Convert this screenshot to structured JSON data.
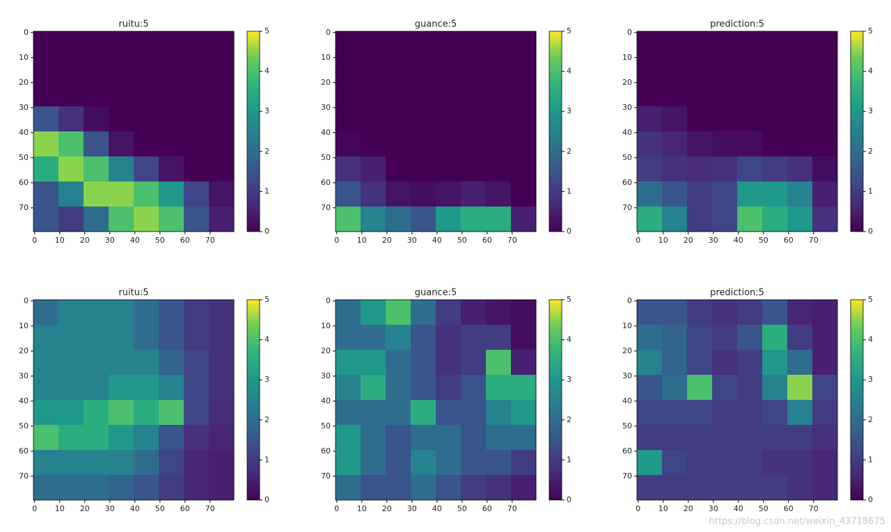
{
  "chart_data": [
    {
      "type": "heatmap",
      "title": "ruitu:5",
      "colormap": "viridis",
      "xlim": [
        -0.5,
        79.5
      ],
      "ylim": [
        79.5,
        -0.5
      ],
      "xticks": [
        0,
        10,
        20,
        30,
        40,
        50,
        60,
        70
      ],
      "yticks": [
        0,
        10,
        20,
        30,
        40,
        50,
        60,
        70
      ],
      "clim": [
        0,
        5
      ],
      "cticks": [
        0,
        1,
        2,
        3,
        4,
        5
      ],
      "values": [
        [
          0,
          0,
          0,
          0,
          0,
          0,
          0,
          0
        ],
        [
          0,
          0,
          0,
          0,
          0,
          0,
          0,
          0
        ],
        [
          0,
          0,
          0,
          0,
          0,
          0,
          0,
          0
        ],
        [
          1.5,
          0.8,
          0.2,
          0,
          0,
          0,
          0,
          0
        ],
        [
          4.5,
          4,
          1.5,
          0.3,
          0,
          0,
          0,
          0
        ],
        [
          3.5,
          4.5,
          4,
          2.5,
          1.2,
          0.3,
          0,
          0
        ],
        [
          1.5,
          2.5,
          4.5,
          4.5,
          4,
          3,
          1.2,
          0.3
        ],
        [
          1.5,
          1,
          2,
          4,
          4.5,
          4,
          1.5,
          0.5
        ]
      ]
    },
    {
      "type": "heatmap",
      "title": "guance:5",
      "colormap": "viridis",
      "xlim": [
        -0.5,
        79.5
      ],
      "ylim": [
        79.5,
        -0.5
      ],
      "xticks": [
        0,
        10,
        20,
        30,
        40,
        50,
        60,
        70
      ],
      "yticks": [
        0,
        10,
        20,
        30,
        40,
        50,
        60,
        70
      ],
      "clim": [
        0,
        5
      ],
      "cticks": [
        0,
        1,
        2,
        3,
        4,
        5
      ],
      "values": [
        [
          0,
          0,
          0,
          0,
          0,
          0,
          0,
          0
        ],
        [
          0,
          0,
          0,
          0,
          0,
          0,
          0,
          0
        ],
        [
          0,
          0,
          0,
          0,
          0,
          0,
          0,
          0
        ],
        [
          0,
          0,
          0,
          0,
          0,
          0,
          0,
          0
        ],
        [
          0.1,
          0,
          0,
          0,
          0,
          0,
          0,
          0
        ],
        [
          0.8,
          0.5,
          0,
          0,
          0,
          0,
          0,
          0
        ],
        [
          1.5,
          0.8,
          0.3,
          0.2,
          0.3,
          0.5,
          0.3,
          0
        ],
        [
          4,
          2.5,
          2,
          1.5,
          3,
          3.5,
          3.5,
          0.5
        ]
      ]
    },
    {
      "type": "heatmap",
      "title": "prediction:5",
      "colormap": "viridis",
      "xlim": [
        -0.5,
        79.5
      ],
      "ylim": [
        79.5,
        -0.5
      ],
      "xticks": [
        0,
        10,
        20,
        30,
        40,
        50,
        60,
        70
      ],
      "yticks": [
        0,
        10,
        20,
        30,
        40,
        50,
        60,
        70
      ],
      "clim": [
        0,
        5
      ],
      "cticks": [
        0,
        1,
        2,
        3,
        4,
        5
      ],
      "values": [
        [
          0,
          0,
          0,
          0,
          0,
          0,
          0,
          0
        ],
        [
          0,
          0,
          0,
          0,
          0,
          0,
          0,
          0
        ],
        [
          0,
          0,
          0,
          0,
          0,
          0,
          0,
          0
        ],
        [
          0.5,
          0.3,
          0,
          0,
          0,
          0,
          0,
          0
        ],
        [
          0.8,
          0.6,
          0.3,
          0.2,
          0.2,
          0,
          0,
          0
        ],
        [
          1,
          0.8,
          0.7,
          0.8,
          1.2,
          1,
          0.8,
          0.2
        ],
        [
          2,
          1.5,
          1,
          1.2,
          3,
          3,
          2.5,
          0.5
        ],
        [
          3.5,
          2.5,
          1,
          1.2,
          4,
          3.5,
          3,
          0.8
        ]
      ]
    },
    {
      "type": "heatmap",
      "title": "ruitu:5",
      "colormap": "viridis",
      "xlim": [
        -0.5,
        79.5
      ],
      "ylim": [
        79.5,
        -0.5
      ],
      "xticks": [
        0,
        10,
        20,
        30,
        40,
        50,
        60,
        70
      ],
      "yticks": [
        0,
        10,
        20,
        30,
        40,
        50,
        60,
        70
      ],
      "clim": [
        0,
        5
      ],
      "cticks": [
        0,
        1,
        2,
        3,
        4,
        5
      ],
      "values": [
        [
          2,
          2.5,
          2.5,
          2.5,
          2,
          1.5,
          1,
          0.8
        ],
        [
          2.5,
          2.5,
          2.5,
          2.5,
          2,
          1.5,
          1,
          0.8
        ],
        [
          2.5,
          2.5,
          2.5,
          2.5,
          2.5,
          1.8,
          1.2,
          0.8
        ],
        [
          2.5,
          2.5,
          2.5,
          3,
          3,
          2.5,
          1.2,
          0.8
        ],
        [
          3,
          3,
          3.5,
          4,
          3.5,
          4,
          1.2,
          0.7
        ],
        [
          4,
          3.5,
          3.5,
          3,
          2.5,
          1.5,
          0.8,
          0.6
        ],
        [
          2.5,
          2.5,
          2.5,
          2.5,
          2,
          1.2,
          0.6,
          0.5
        ],
        [
          2,
          2,
          2,
          1.8,
          1.5,
          1,
          0.6,
          0.5
        ]
      ]
    },
    {
      "type": "heatmap",
      "title": "guance:5",
      "colormap": "viridis",
      "xlim": [
        -0.5,
        79.5
      ],
      "ylim": [
        79.5,
        -0.5
      ],
      "xticks": [
        0,
        10,
        20,
        30,
        40,
        50,
        60,
        70
      ],
      "yticks": [
        0,
        10,
        20,
        30,
        40,
        50,
        60,
        70
      ],
      "clim": [
        0,
        5
      ],
      "cticks": [
        0,
        1,
        2,
        3,
        4,
        5
      ],
      "values": [
        [
          2,
          3,
          4,
          2,
          1,
          0.5,
          0.3,
          0.2
        ],
        [
          2,
          2,
          2.5,
          1.5,
          0.8,
          1,
          1,
          0.2
        ],
        [
          3,
          3,
          2,
          1.5,
          0.8,
          1,
          4,
          0.5
        ],
        [
          2.5,
          3.5,
          2,
          1.5,
          1,
          1.5,
          3.5,
          3.5
        ],
        [
          2,
          2,
          2,
          3.5,
          1.5,
          1.5,
          2.5,
          3
        ],
        [
          3,
          2,
          1.5,
          2,
          2,
          1.5,
          2,
          2
        ],
        [
          3,
          2,
          1.5,
          2.5,
          2,
          1.5,
          1.5,
          1
        ],
        [
          2,
          1.5,
          1.5,
          2,
          1.5,
          1,
          0.8,
          0.5
        ]
      ]
    },
    {
      "type": "heatmap",
      "title": "prediction:5",
      "colormap": "viridis",
      "xlim": [
        -0.5,
        79.5
      ],
      "ylim": [
        79.5,
        -0.5
      ],
      "xticks": [
        0,
        10,
        20,
        30,
        40,
        50,
        60,
        70
      ],
      "yticks": [
        0,
        10,
        20,
        30,
        40,
        50,
        60,
        70
      ],
      "clim": [
        0,
        5
      ],
      "cticks": [
        0,
        1,
        2,
        3,
        4,
        5
      ],
      "values": [
        [
          1.5,
          1.5,
          1,
          0.8,
          1,
          1.5,
          0.6,
          0.5
        ],
        [
          2,
          1.8,
          1.2,
          1,
          1.5,
          3.5,
          1,
          0.5
        ],
        [
          2.5,
          1.8,
          1.2,
          0.8,
          1,
          3,
          2,
          0.5
        ],
        [
          1.5,
          2,
          4,
          1.2,
          1,
          2.5,
          4.5,
          1.2
        ],
        [
          1.2,
          1.2,
          1.2,
          1,
          1,
          1.2,
          2.5,
          1
        ],
        [
          1,
          1,
          1,
          1,
          1,
          1,
          1,
          0.8
        ],
        [
          3,
          1.2,
          1,
          1,
          1,
          0.8,
          0.8,
          0.6
        ],
        [
          1,
          1,
          1,
          1,
          1,
          1,
          0.8,
          0.6
        ]
      ]
    }
  ],
  "watermark": "https://blog.csdn.net/weixin_43718675"
}
